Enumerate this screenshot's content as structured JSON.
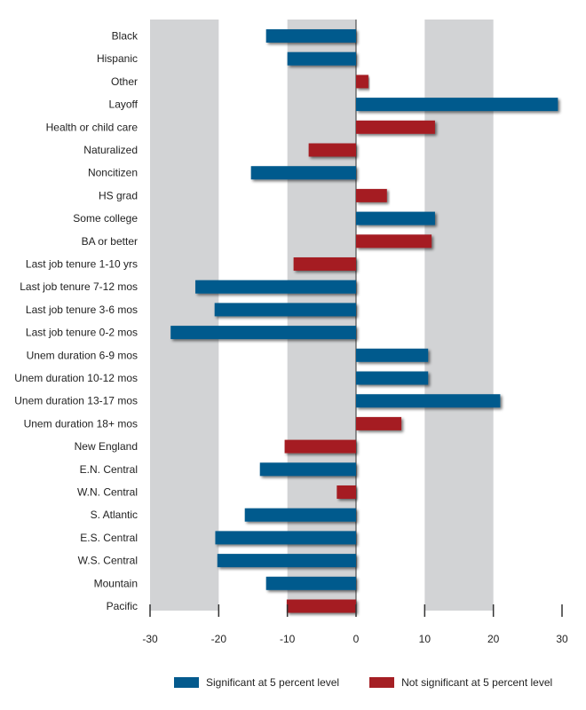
{
  "chart_data": {
    "type": "bar",
    "orientation": "horizontal",
    "title": "",
    "xlabel": "",
    "ylabel": "",
    "xlim": [
      -30,
      30
    ],
    "x_ticks": [
      -30,
      -20,
      -10,
      0,
      10,
      20,
      30
    ],
    "x_tick_labels": [
      "-30",
      "-20",
      "-10",
      "0",
      "10",
      "20",
      "30"
    ],
    "grid": "alternating vertical bands",
    "legend_position": "bottom",
    "categories": [
      "Black",
      "Hispanic",
      "Other",
      "Layoff",
      "Health or child care",
      "Naturalized",
      "Noncitizen",
      "HS grad",
      "Some college",
      "BA or better",
      "Last job tenure 1-10 yrs",
      "Last job tenure 7-12 mos",
      "Last job tenure 3-6 mos",
      "Last job tenure 0-2 mos",
      "Unem duration 6-9 mos",
      "Unem duration 10-12 mos",
      "Unem duration 13-17 mos",
      "Unem duration 18+ mos",
      "New England",
      "E.N. Central",
      "W.N. Central",
      "S. Atlantic",
      "E.S. Central",
      "W.S. Central",
      "Mountain",
      "Pacific"
    ],
    "values": [
      -13.1,
      -10.0,
      1.8,
      29.4,
      11.5,
      -6.9,
      -15.3,
      4.5,
      11.5,
      11.0,
      -9.1,
      -23.4,
      -20.6,
      -27.0,
      10.5,
      10.5,
      21.0,
      6.6,
      -10.4,
      -14.0,
      -2.8,
      -16.2,
      -20.5,
      -20.2,
      -13.1,
      -10.1
    ],
    "significant": [
      true,
      true,
      false,
      true,
      false,
      false,
      true,
      false,
      true,
      false,
      false,
      true,
      true,
      true,
      true,
      true,
      true,
      false,
      false,
      true,
      false,
      true,
      true,
      true,
      true,
      false
    ],
    "series": [
      {
        "name": "Significant at 5 percent level",
        "color": "#045a8d"
      },
      {
        "name": "Not significant at 5 percent level",
        "color": "#a51f24"
      }
    ]
  },
  "colors": {
    "significant": "#045a8d",
    "not_significant": "#a51f24",
    "band": "#d2d3d5",
    "axis": "#333333"
  },
  "legend": {
    "significant_label": "Significant at 5 percent level",
    "not_significant_label": "Not significant at 5 percent level"
  }
}
